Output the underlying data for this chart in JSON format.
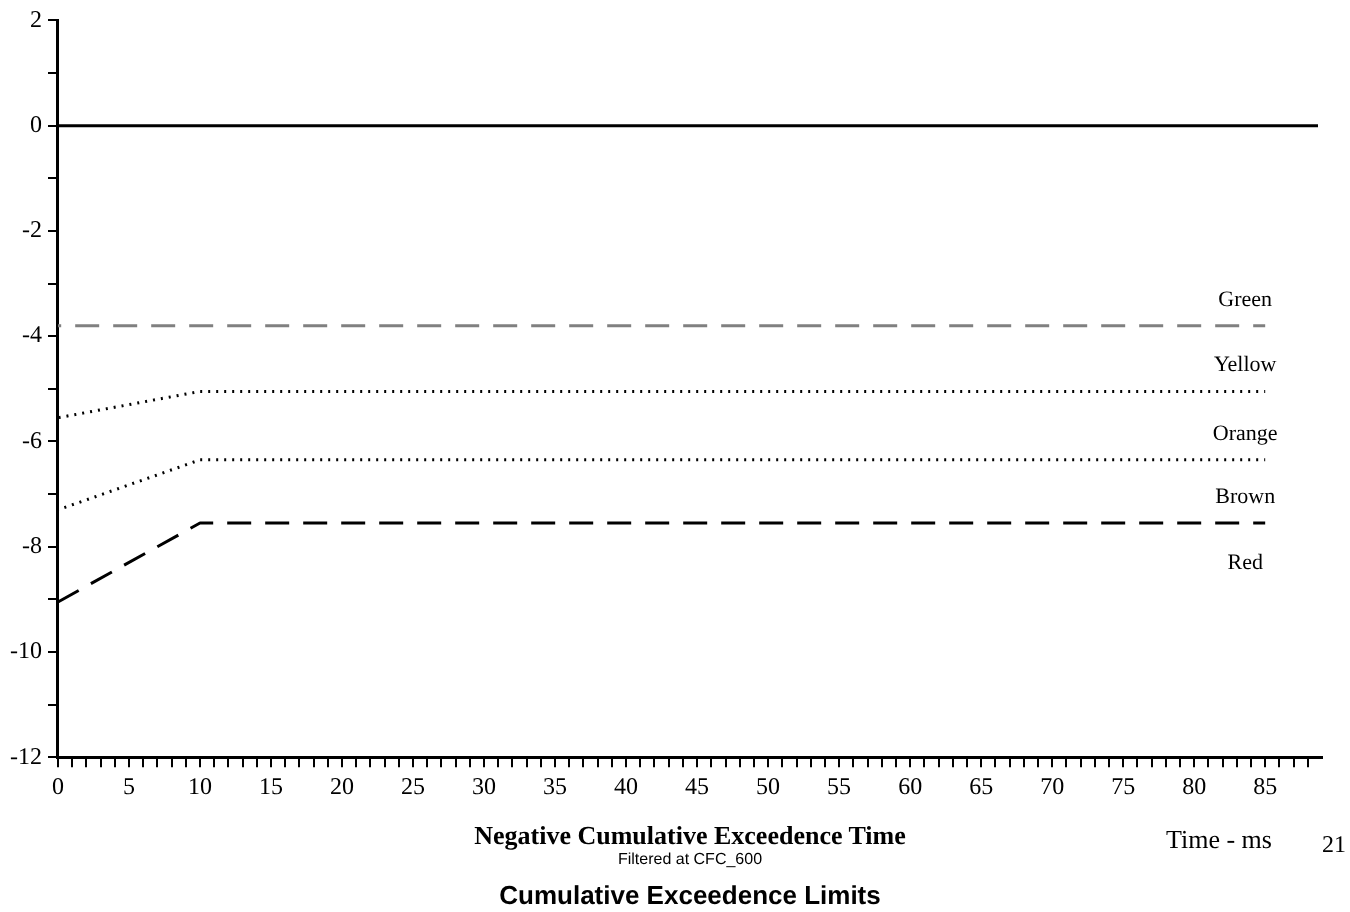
{
  "chart_data": {
    "type": "line",
    "title": "Cumulative Exceedence Limits",
    "subtitle": "Filtered at CFC_600",
    "xlabel": "Negative Cumulative Exceedence Time",
    "annotations": [
      "Time - ms",
      "Red",
      "21"
    ],
    "xlim": [
      0,
      89
    ],
    "ylim": [
      -12,
      2
    ],
    "xticks": [
      0,
      {
        "value": 1,
        "label": null
      },
      {
        "value": 2,
        "label": null
      },
      {
        "value": 3,
        "label": null
      },
      {
        "value": 4,
        "label": null
      },
      5,
      {
        "value": 6,
        "label": null
      },
      {
        "value": 7,
        "label": null
      },
      {
        "value": 8,
        "label": null
      },
      {
        "value": 9,
        "label": null
      },
      10,
      {
        "value": 11,
        "label": null
      },
      {
        "value": 12,
        "label": null
      },
      {
        "value": 13,
        "label": null
      },
      {
        "value": 14,
        "label": null
      },
      15,
      {
        "value": 16,
        "label": null
      },
      {
        "value": 17,
        "label": null
      },
      {
        "value": 18,
        "label": null
      },
      {
        "value": 19,
        "label": null
      },
      20,
      {
        "value": 21,
        "label": null
      },
      {
        "value": 22,
        "label": null
      },
      {
        "value": 23,
        "label": null
      },
      {
        "value": 24,
        "label": null
      },
      25,
      {
        "value": 26,
        "label": null
      },
      {
        "value": 27,
        "label": null
      },
      {
        "value": 28,
        "label": null
      },
      {
        "value": 29,
        "label": null
      },
      30,
      {
        "value": 31,
        "label": null
      },
      {
        "value": 32,
        "label": null
      },
      {
        "value": 33,
        "label": null
      },
      {
        "value": 34,
        "label": null
      },
      35,
      {
        "value": 36,
        "label": null
      },
      {
        "value": 37,
        "label": null
      },
      {
        "value": 38,
        "label": null
      },
      {
        "value": 39,
        "label": null
      },
      40,
      {
        "value": 41,
        "label": null
      },
      {
        "value": 42,
        "label": null
      },
      {
        "value": 43,
        "label": null
      },
      {
        "value": 44,
        "label": null
      },
      45,
      {
        "value": 46,
        "label": null
      },
      {
        "value": 47,
        "label": null
      },
      {
        "value": 48,
        "label": null
      },
      {
        "value": 49,
        "label": null
      },
      50,
      {
        "value": 51,
        "label": null
      },
      {
        "value": 52,
        "label": null
      },
      {
        "value": 53,
        "label": null
      },
      {
        "value": 54,
        "label": null
      },
      55,
      {
        "value": 56,
        "label": null
      },
      {
        "value": 57,
        "label": null
      },
      {
        "value": 58,
        "label": null
      },
      {
        "value": 59,
        "label": null
      },
      60,
      {
        "value": 61,
        "label": null
      },
      {
        "value": 62,
        "label": null
      },
      {
        "value": 63,
        "label": null
      },
      {
        "value": 64,
        "label": null
      },
      65,
      {
        "value": 66,
        "label": null
      },
      {
        "value": 67,
        "label": null
      },
      {
        "value": 68,
        "label": null
      },
      {
        "value": 69,
        "label": null
      },
      70,
      {
        "value": 71,
        "label": null
      },
      {
        "value": 72,
        "label": null
      },
      {
        "value": 73,
        "label": null
      },
      {
        "value": 74,
        "label": null
      },
      75,
      {
        "value": 76,
        "label": null
      },
      {
        "value": 77,
        "label": null
      },
      {
        "value": 78,
        "label": null
      },
      {
        "value": 79,
        "label": null
      },
      80,
      {
        "value": 81,
        "label": null
      },
      {
        "value": 82,
        "label": null
      },
      {
        "value": 83,
        "label": null
      },
      {
        "value": 84,
        "label": null
      },
      85,
      {
        "value": 86,
        "label": null
      },
      {
        "value": 87,
        "label": null
      },
      {
        "value": 88,
        "label": null
      }
    ],
    "yticks": [
      -12,
      {
        "value": -11,
        "label": null
      },
      -10,
      {
        "value": -9,
        "label": null
      },
      -8,
      {
        "value": -7,
        "label": null
      },
      -6,
      {
        "value": -5,
        "label": null
      },
      -4,
      {
        "value": -3,
        "label": null
      },
      -2,
      {
        "value": -1,
        "label": null
      },
      0,
      {
        "value": 1,
        "label": null
      },
      2
    ],
    "x": [
      0,
      10,
      85
    ],
    "series": [
      {
        "name": "Green",
        "color": "#808080",
        "line_style": "dashed",
        "values": [
          -3.8,
          -3.8,
          -3.8
        ]
      },
      {
        "name": "Yellow",
        "color": "#000000",
        "line_style": "dotted",
        "values": [
          -5.55,
          -5.05,
          -5.05
        ]
      },
      {
        "name": "Orange",
        "color": "#000000",
        "line_style": "dotted",
        "values": [
          -7.3,
          -6.35,
          -6.35
        ]
      },
      {
        "name": "Brown",
        "color": "#000000",
        "line_style": "dashed",
        "values": [
          -9.05,
          -7.55,
          -7.55
        ]
      }
    ],
    "ref_lines": [
      {
        "axis": "y",
        "value": 0,
        "color": "#000000",
        "line_style": "solid"
      }
    ],
    "grid": false,
    "legend": false,
    "marker": "none"
  }
}
